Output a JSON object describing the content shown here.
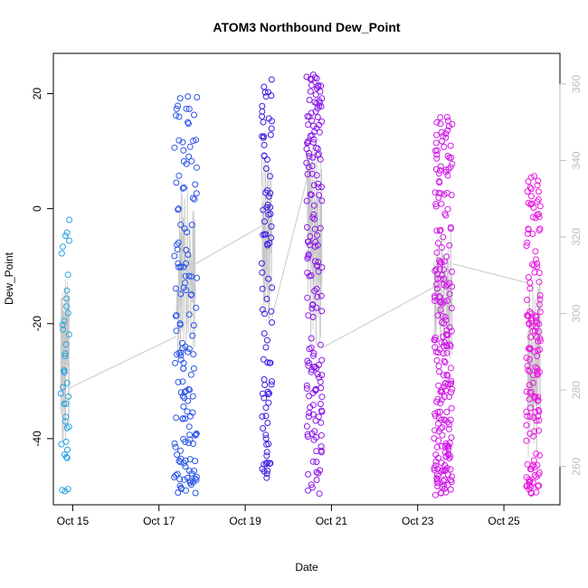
{
  "chart_data": {
    "type": "scatter",
    "title": "ATOM3 Northbound Dew_Point",
    "xlabel": "Date",
    "ylabel": "Dew_Point",
    "xlim": [
      14.55,
      26.3
    ],
    "ylim": [
      -51.5,
      27
    ],
    "y2lim": [
      250,
      368
    ],
    "x_ticks": [
      {
        "x": 15,
        "label": "Oct 15"
      },
      {
        "x": 17,
        "label": "Oct 17"
      },
      {
        "x": 19,
        "label": "Oct 19"
      },
      {
        "x": 21,
        "label": "Oct 21"
      },
      {
        "x": 23,
        "label": "Oct 23"
      },
      {
        "x": 25,
        "label": "Oct 25"
      }
    ],
    "y_ticks": [
      {
        "y": 20,
        "label": "20"
      },
      {
        "y": 0,
        "label": "0"
      },
      {
        "y": -20,
        "label": "-20"
      },
      {
        "y": -40,
        "label": "-40"
      }
    ],
    "y2_ticks": [
      {
        "y": 260,
        "label": "260"
      },
      {
        "y": 280,
        "label": "280"
      },
      {
        "y": 300,
        "label": "300"
      },
      {
        "y": 320,
        "label": "320"
      },
      {
        "y": 340,
        "label": "340"
      },
      {
        "y": 360,
        "label": "360"
      }
    ],
    "clusters": [
      {
        "x_range": [
          14.72,
          14.92
        ],
        "y_range": [
          -49.5,
          -1.5
        ],
        "color": "#29a3e0",
        "n": 40
      },
      {
        "x_range": [
          17.35,
          17.88
        ],
        "y_range": [
          -49.5,
          19.8
        ],
        "color": "#2b55e8",
        "n": 150
      },
      {
        "x_range": [
          19.38,
          19.62
        ],
        "y_range": [
          -48,
          24
        ],
        "color": "#3a1fe6",
        "n": 90
      },
      {
        "x_range": [
          20.42,
          20.78
        ],
        "y_range": [
          -49.8,
          23.5
        ],
        "color": "#8a18e8",
        "n": 170
      },
      {
        "x_range": [
          23.38,
          23.8
        ],
        "y_range": [
          -49.8,
          16
        ],
        "color": "#d11ae8",
        "n": 230
      },
      {
        "x_range": [
          25.52,
          25.85
        ],
        "y_range": [
          -49.8,
          6
        ],
        "color": "#e81ae0",
        "n": 150
      }
    ],
    "line_series": {
      "color": "#c8c8c8",
      "axis": "right",
      "segments": [
        {
          "x_range": [
            14.72,
            14.92
          ],
          "y_range": [
            265,
            310
          ]
        },
        {
          "x_range": [
            17.4,
            17.85
          ],
          "y_range": [
            288,
            335
          ]
        },
        {
          "x_range": [
            19.38,
            19.62
          ],
          "y_range": [
            296,
            342
          ]
        },
        {
          "x_range": [
            20.42,
            20.78
          ],
          "y_range": [
            290,
            345
          ]
        },
        {
          "x_range": [
            23.38,
            23.8
          ],
          "y_range": [
            288,
            322
          ]
        },
        {
          "x_range": [
            25.55,
            25.85
          ],
          "y_range": [
            262,
            310
          ]
        }
      ],
      "connectors": [
        {
          "from": [
            14.92,
            280.5
          ],
          "to": [
            17.4,
            294
          ]
        },
        {
          "from": [
            17.85,
            313
          ],
          "to": [
            19.4,
            323
          ]
        },
        {
          "from": [
            19.62,
            299
          ],
          "to": [
            20.45,
            336
          ]
        },
        {
          "from": [
            20.78,
            291
          ],
          "to": [
            23.4,
            307
          ]
        },
        {
          "from": [
            23.8,
            313
          ],
          "to": [
            25.56,
            308
          ]
        }
      ]
    }
  }
}
